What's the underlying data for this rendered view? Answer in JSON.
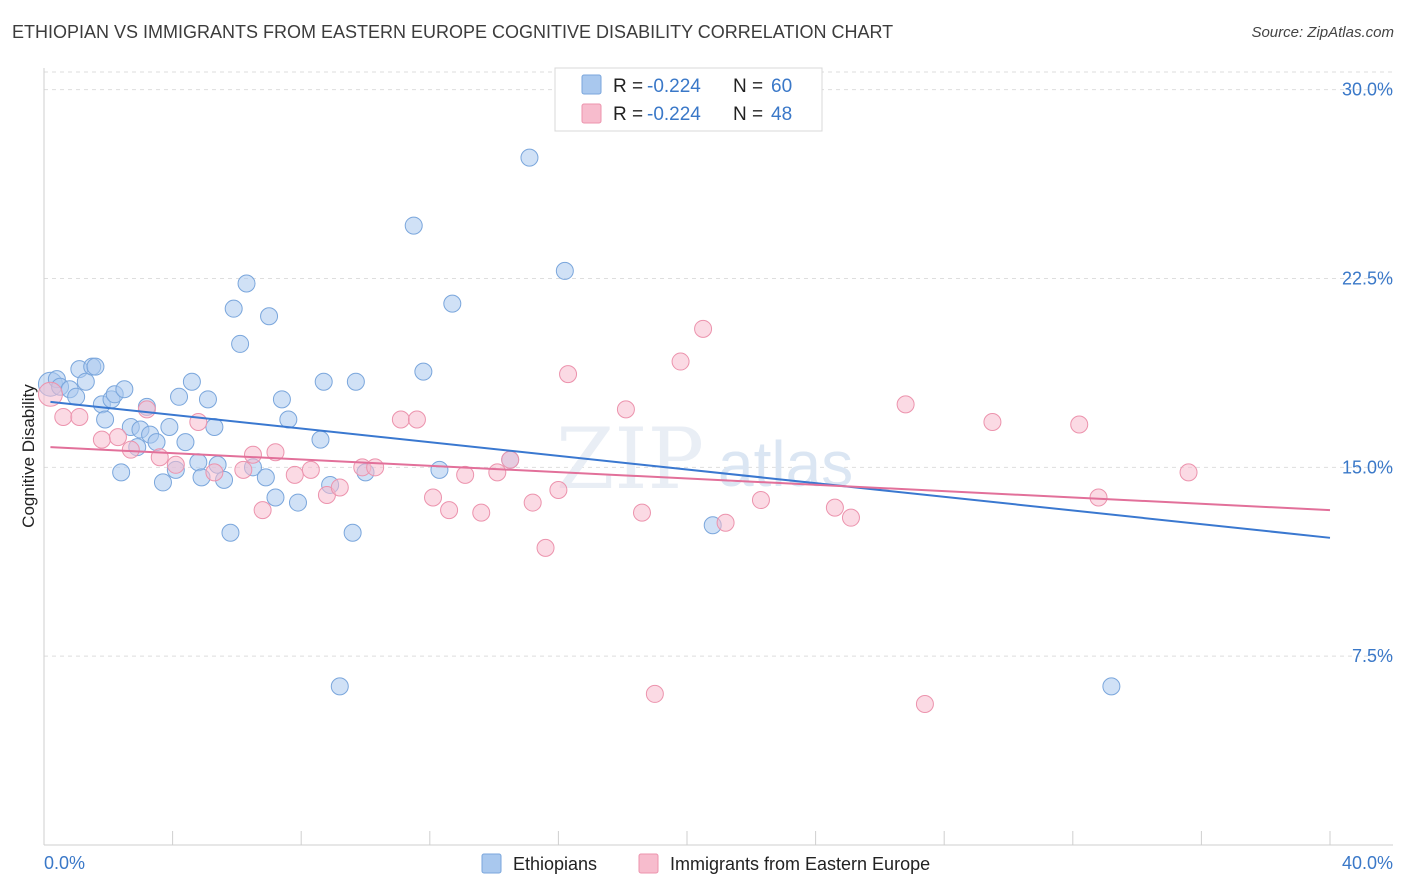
{
  "title": "ETHIOPIAN VS IMMIGRANTS FROM EASTERN EUROPE COGNITIVE DISABILITY CORRELATION CHART",
  "source": "Source: ZipAtlas.com",
  "watermark": {
    "zip": "ZIP",
    "atlas": "atlas"
  },
  "legend_top": [
    {
      "r_label": "R =",
      "r_value": "-0.224",
      "n_label": "N =",
      "n_value": "60",
      "color": "#a9c8ee",
      "stroke": "#7aa6dc"
    },
    {
      "r_label": "R =",
      "r_value": "-0.224",
      "n_label": "N =",
      "n_value": "48",
      "color": "#f7bccd",
      "stroke": "#ec93ad"
    }
  ],
  "legend_bottom": [
    {
      "label": "Ethiopians",
      "color": "#a9c8ee",
      "stroke": "#7aa6dc"
    },
    {
      "label": "Immigrants from Eastern Europe",
      "color": "#f7bccd",
      "stroke": "#ec93ad"
    }
  ],
  "chart_data": {
    "type": "scatter",
    "title": "ETHIOPIAN VS IMMIGRANTS FROM EASTERN EUROPE COGNITIVE DISABILITY CORRELATION CHART",
    "xlabel": "",
    "ylabel": "Cognitive Disability",
    "xlim": [
      0,
      40
    ],
    "ylim": [
      0,
      30.7
    ],
    "y_ticks": [
      7.5,
      15.0,
      22.5,
      30.0
    ],
    "y_tick_labels": [
      "7.5%",
      "15.0%",
      "22.5%",
      "30.0%"
    ],
    "x_tick_labels": [
      "0.0%",
      "40.0%"
    ],
    "grid": "horizontal dashed",
    "legend_placement": "top-center",
    "series": [
      {
        "name": "Ethiopians",
        "color": "#3a78d0",
        "trend": {
          "x": [
            0.2,
            40
          ],
          "y": [
            17.6,
            12.2
          ]
        },
        "points": [
          [
            0.2,
            18.3
          ],
          [
            0.4,
            18.5
          ],
          [
            0.5,
            18.2
          ],
          [
            0.8,
            18.1
          ],
          [
            1.0,
            17.8
          ],
          [
            1.1,
            18.9
          ],
          [
            1.3,
            18.4
          ],
          [
            1.5,
            19.0
          ],
          [
            1.6,
            19.0
          ],
          [
            1.8,
            17.5
          ],
          [
            1.9,
            16.9
          ],
          [
            2.1,
            17.7
          ],
          [
            2.2,
            17.9
          ],
          [
            2.4,
            14.8
          ],
          [
            2.5,
            18.1
          ],
          [
            2.7,
            16.6
          ],
          [
            2.9,
            15.8
          ],
          [
            3.0,
            16.5
          ],
          [
            3.2,
            17.4
          ],
          [
            3.3,
            16.3
          ],
          [
            3.5,
            16.0
          ],
          [
            3.7,
            14.4
          ],
          [
            3.9,
            16.6
          ],
          [
            4.1,
            14.9
          ],
          [
            4.2,
            17.8
          ],
          [
            4.4,
            16.0
          ],
          [
            4.6,
            18.4
          ],
          [
            4.8,
            15.2
          ],
          [
            4.9,
            14.6
          ],
          [
            5.1,
            17.7
          ],
          [
            5.3,
            16.6
          ],
          [
            5.4,
            15.1
          ],
          [
            5.6,
            14.5
          ],
          [
            5.8,
            12.4
          ],
          [
            5.9,
            21.3
          ],
          [
            6.1,
            19.9
          ],
          [
            6.3,
            22.3
          ],
          [
            6.5,
            15.0
          ],
          [
            6.9,
            14.6
          ],
          [
            7.0,
            21.0
          ],
          [
            7.2,
            13.8
          ],
          [
            7.4,
            17.7
          ],
          [
            7.6,
            16.9
          ],
          [
            7.9,
            13.6
          ],
          [
            8.6,
            16.1
          ],
          [
            8.7,
            18.4
          ],
          [
            8.9,
            14.3
          ],
          [
            9.2,
            6.3
          ],
          [
            9.6,
            12.4
          ],
          [
            9.7,
            18.4
          ],
          [
            10.0,
            14.8
          ],
          [
            11.5,
            24.6
          ],
          [
            11.8,
            18.8
          ],
          [
            12.7,
            21.5
          ],
          [
            14.5,
            15.3
          ],
          [
            15.1,
            27.3
          ],
          [
            16.2,
            22.8
          ],
          [
            20.8,
            12.7
          ],
          [
            33.2,
            6.3
          ],
          [
            12.3,
            14.9
          ]
        ]
      },
      {
        "name": "Immigrants from Eastern Europe",
        "color": "#e2709a",
        "trend": {
          "x": [
            0.2,
            40
          ],
          "y": [
            15.8,
            13.3
          ]
        },
        "points": [
          [
            0.2,
            17.9
          ],
          [
            0.6,
            17.0
          ],
          [
            1.1,
            17.0
          ],
          [
            1.8,
            16.1
          ],
          [
            2.3,
            16.2
          ],
          [
            2.7,
            15.7
          ],
          [
            3.2,
            17.3
          ],
          [
            3.6,
            15.4
          ],
          [
            4.1,
            15.1
          ],
          [
            4.8,
            16.8
          ],
          [
            5.3,
            14.8
          ],
          [
            6.2,
            14.9
          ],
          [
            6.5,
            15.5
          ],
          [
            6.8,
            13.3
          ],
          [
            7.2,
            15.6
          ],
          [
            7.8,
            14.7
          ],
          [
            8.3,
            14.9
          ],
          [
            8.8,
            13.9
          ],
          [
            9.2,
            14.2
          ],
          [
            9.9,
            15.0
          ],
          [
            10.3,
            15.0
          ],
          [
            11.1,
            16.9
          ],
          [
            11.6,
            16.9
          ],
          [
            12.1,
            13.8
          ],
          [
            12.6,
            13.3
          ],
          [
            13.1,
            14.7
          ],
          [
            13.6,
            13.2
          ],
          [
            14.1,
            14.8
          ],
          [
            14.5,
            15.3
          ],
          [
            15.2,
            13.6
          ],
          [
            15.6,
            11.8
          ],
          [
            16.0,
            14.1
          ],
          [
            16.3,
            18.7
          ],
          [
            18.1,
            17.3
          ],
          [
            18.6,
            13.2
          ],
          [
            19.0,
            6.0
          ],
          [
            19.8,
            19.2
          ],
          [
            20.5,
            20.5
          ],
          [
            21.2,
            12.8
          ],
          [
            22.3,
            13.7
          ],
          [
            24.6,
            13.4
          ],
          [
            25.1,
            13.0
          ],
          [
            26.8,
            17.5
          ],
          [
            27.4,
            5.6
          ],
          [
            29.5,
            16.8
          ],
          [
            32.2,
            16.7
          ],
          [
            32.8,
            13.8
          ],
          [
            35.6,
            14.8
          ]
        ]
      }
    ]
  }
}
